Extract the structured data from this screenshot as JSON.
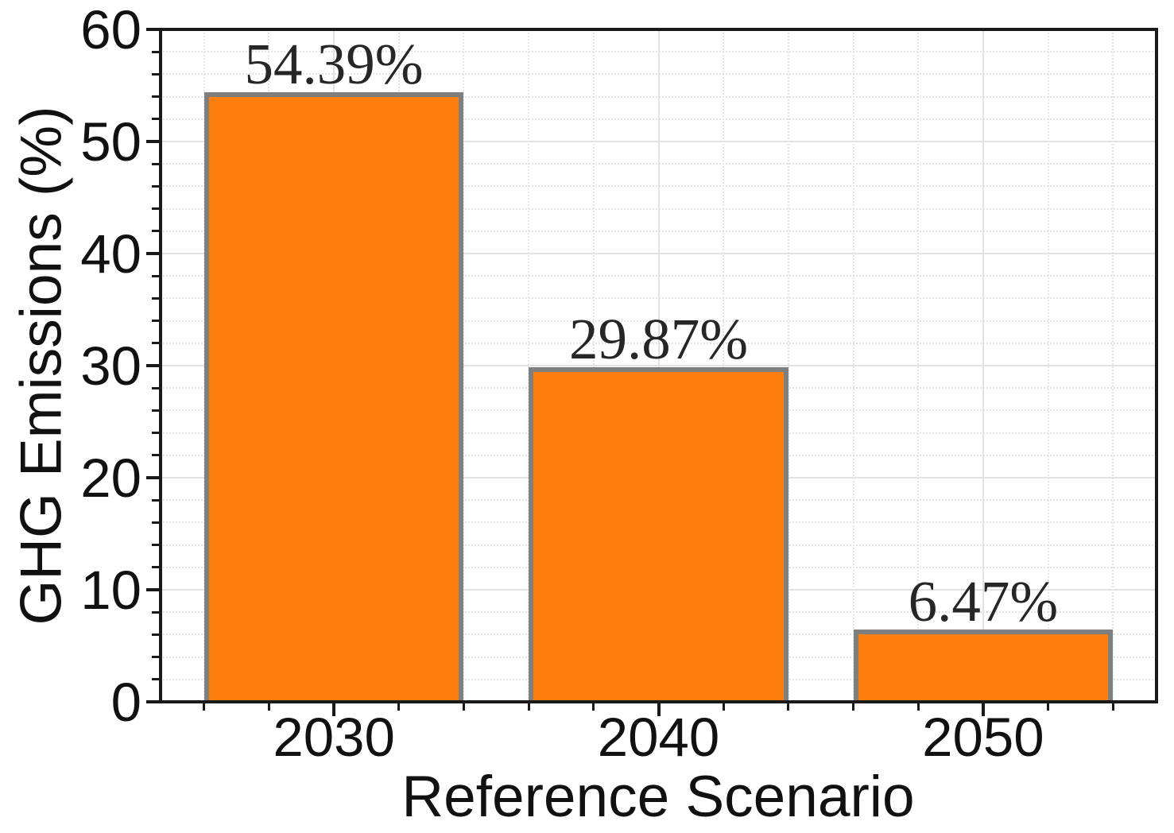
{
  "chart_data": {
    "type": "bar",
    "title": "",
    "xlabel": "Reference Scenario",
    "ylabel": "GHG Emissions (%)",
    "categories": [
      "2030",
      "2040",
      "2050"
    ],
    "values": [
      54.39,
      29.87,
      6.47
    ],
    "bar_labels": [
      "54.39%",
      "29.87%",
      "6.47%"
    ],
    "ylim": [
      0,
      60
    ],
    "ytick_labels": [
      "0",
      "10",
      "20",
      "30",
      "40",
      "50",
      "60"
    ],
    "ytick_major_step": 10,
    "ytick_minor_step": 2,
    "xminor_divisions": 5,
    "bar_width_fraction": 0.8,
    "grid": "major solid, minor dotted, both axes",
    "legend_position": "none",
    "colors": {
      "bar_fill": "#fb7e0e",
      "bar_edge": "#7f7f7f",
      "spine": "#1a1a1a",
      "grid_major": "#e2e2e2",
      "grid_minor": "#e4e4e4",
      "text": "#111111"
    }
  }
}
